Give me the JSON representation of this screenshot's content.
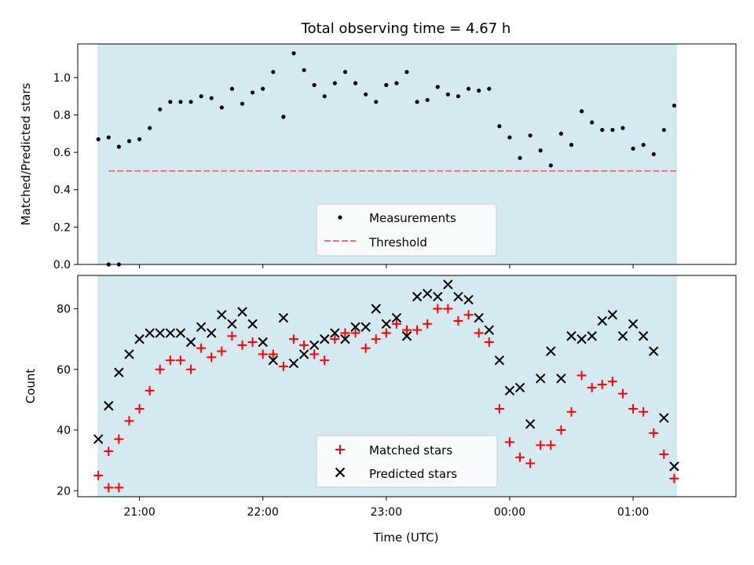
{
  "chart_data": [
    {
      "type": "scatter",
      "title": "Total observing time = 4.67 h",
      "ylabel": "Matched/Predicted stars",
      "ylim": [
        0,
        1.18
      ],
      "yticks": [
        "0.0",
        "0.2",
        "0.4",
        "0.6",
        "0.8",
        "1.0"
      ],
      "ytick_values": [
        0,
        0.2,
        0.4,
        0.6,
        0.8,
        1.0
      ],
      "x_range_minutes": [
        1230,
        1550
      ],
      "shaded_span_minutes": [
        1240,
        1521
      ],
      "shade_color": "#d4eaf0",
      "threshold": {
        "name": "Threshold",
        "value": 0.5,
        "x_start_minutes": 1245,
        "x_end_minutes": 1521,
        "color": "#f07070"
      },
      "series": [
        {
          "name": "Measurements",
          "color": "#000000",
          "x_minutes": [
            1245,
            1250,
            1240,
            1245,
            1250,
            1255,
            1260,
            1265,
            1270,
            1275,
            1280,
            1285,
            1290,
            1295,
            1300,
            1305,
            1310,
            1315,
            1320,
            1325,
            1330,
            1335,
            1340,
            1345,
            1350,
            1355,
            1360,
            1365,
            1370,
            1375,
            1380,
            1385,
            1390,
            1395,
            1400,
            1405,
            1410,
            1415,
            1420,
            1425,
            1430,
            1435,
            1440,
            1445,
            1450,
            1455,
            1460,
            1465,
            1470,
            1475,
            1480,
            1485,
            1490,
            1495,
            1500,
            1505,
            1510,
            1515,
            1520
          ],
          "y": [
            0.0,
            0.0,
            0.67,
            0.68,
            0.63,
            0.66,
            0.67,
            0.73,
            0.83,
            0.87,
            0.87,
            0.87,
            0.9,
            0.89,
            0.84,
            0.94,
            0.86,
            0.92,
            0.94,
            1.03,
            0.79,
            1.13,
            1.04,
            0.96,
            0.9,
            0.97,
            1.03,
            0.97,
            0.91,
            0.87,
            0.96,
            0.97,
            1.03,
            0.87,
            0.88,
            0.95,
            0.91,
            0.9,
            0.94,
            0.93,
            0.94,
            0.74,
            0.68,
            0.57,
            0.69,
            0.61,
            0.53,
            0.7,
            0.64,
            0.82,
            0.76,
            0.72,
            0.72,
            0.73,
            0.62,
            0.64,
            0.59,
            0.72,
            0.85
          ]
        }
      ],
      "legend": {
        "placement": "lower center",
        "entries": [
          "Measurements",
          "Threshold"
        ]
      }
    },
    {
      "type": "scatter",
      "xlabel": "Time (UTC)",
      "ylabel": "Count",
      "ylim": [
        18,
        91
      ],
      "yticks": [
        "20",
        "40",
        "60",
        "80"
      ],
      "ytick_values": [
        20,
        40,
        60,
        80
      ],
      "x_range_minutes": [
        1230,
        1550
      ],
      "xticks": [
        "21:00",
        "22:00",
        "23:00",
        "00:00",
        "01:00"
      ],
      "xtick_minutes": [
        1260,
        1320,
        1380,
        1440,
        1500
      ],
      "shaded_span_minutes": [
        1240,
        1521
      ],
      "shade_color": "#d4eaf0",
      "series": [
        {
          "name": "Matched stars",
          "marker": "plus",
          "color": "#ff0000",
          "x_minutes": [
            1245,
            1250,
            1240,
            1245,
            1250,
            1255,
            1260,
            1265,
            1270,
            1275,
            1280,
            1285,
            1290,
            1295,
            1300,
            1305,
            1310,
            1315,
            1320,
            1325,
            1330,
            1335,
            1340,
            1345,
            1350,
            1355,
            1360,
            1365,
            1370,
            1375,
            1380,
            1385,
            1390,
            1395,
            1400,
            1405,
            1410,
            1415,
            1420,
            1425,
            1430,
            1435,
            1440,
            1445,
            1450,
            1455,
            1460,
            1465,
            1470,
            1475,
            1480,
            1485,
            1490,
            1495,
            1500,
            1505,
            1510,
            1515,
            1520
          ],
          "y": [
            21,
            21,
            25,
            33,
            37,
            43,
            47,
            53,
            60,
            63,
            63,
            60,
            67,
            64,
            66,
            71,
            68,
            69,
            65,
            65,
            61,
            70,
            68,
            65,
            63,
            70,
            72,
            72,
            67,
            70,
            72,
            75,
            73,
            73,
            75,
            80,
            80,
            76,
            78,
            72,
            69,
            47,
            36,
            31,
            29,
            35,
            35,
            40,
            46,
            58,
            54,
            55,
            56,
            52,
            47,
            46,
            39,
            32,
            24
          ]
        },
        {
          "name": "Predicted stars",
          "marker": "x",
          "color": "#000000",
          "x_minutes": [
            1240,
            1245,
            1250,
            1255,
            1260,
            1265,
            1270,
            1275,
            1280,
            1285,
            1290,
            1295,
            1300,
            1305,
            1310,
            1315,
            1320,
            1325,
            1330,
            1335,
            1340,
            1345,
            1350,
            1355,
            1360,
            1365,
            1370,
            1375,
            1380,
            1385,
            1390,
            1395,
            1400,
            1405,
            1410,
            1415,
            1420,
            1425,
            1430,
            1435,
            1440,
            1445,
            1450,
            1455,
            1460,
            1465,
            1470,
            1475,
            1480,
            1485,
            1490,
            1495,
            1500,
            1505,
            1510,
            1515,
            1520
          ],
          "y": [
            37,
            48,
            59,
            65,
            70,
            72,
            72,
            72,
            72,
            69,
            74,
            72,
            78,
            75,
            79,
            75,
            69,
            63,
            77,
            62,
            65,
            68,
            70,
            72,
            70,
            74,
            74,
            80,
            75,
            77,
            71,
            84,
            85,
            84,
            88,
            84,
            83,
            77,
            73,
            63,
            53,
            54,
            42,
            57,
            66,
            57,
            71,
            70,
            71,
            76,
            78,
            71,
            75,
            71,
            66,
            44,
            28
          ]
        }
      ],
      "legend": {
        "placement": "lower center",
        "entries": [
          "Matched stars",
          "Predicted stars"
        ]
      }
    }
  ]
}
